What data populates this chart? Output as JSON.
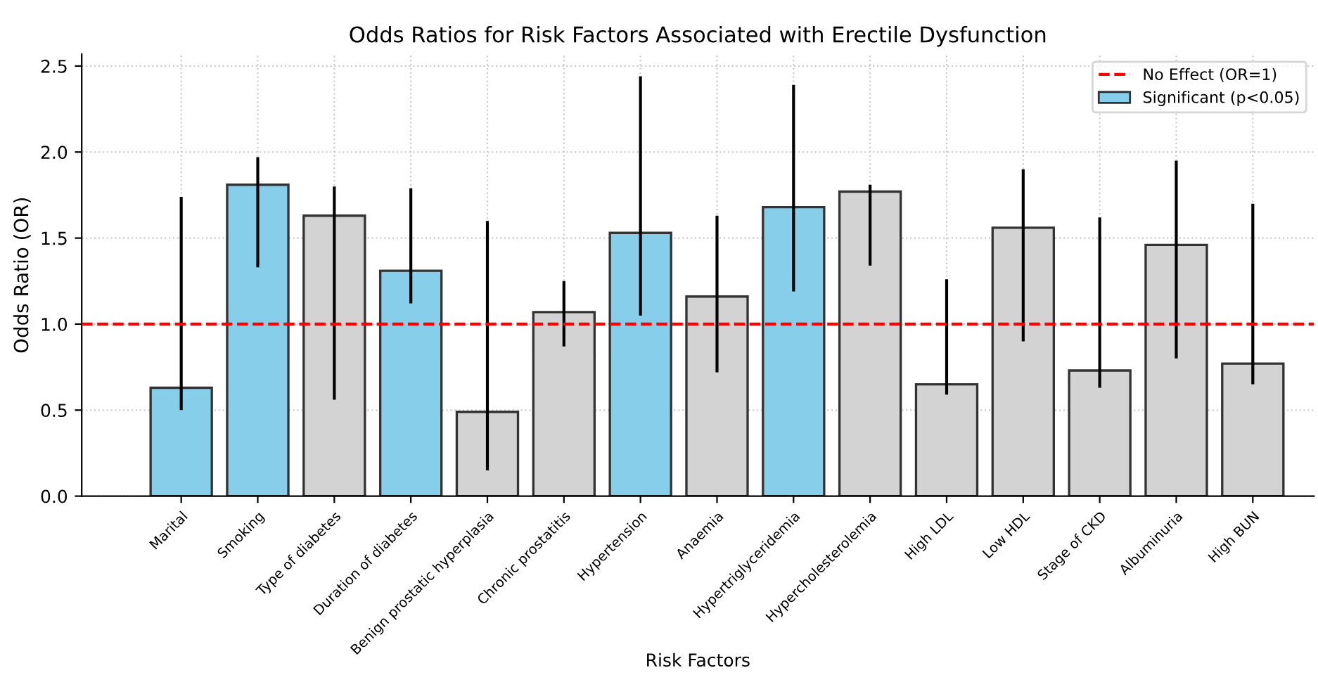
{
  "chart_data": {
    "type": "bar",
    "title": "Odds Ratios for Risk Factors Associated with Erectile Dysfunction",
    "xlabel": "Risk Factors",
    "ylabel": "Odds Ratio (OR)",
    "categories": [
      "Marital",
      "Smoking",
      "Type of diabetes",
      "Duration of diabetes",
      "Benign prostatic hyperplasia",
      "Chronic prostatitis",
      "Hypertension",
      "Anaemia",
      "Hypertriglyceridemia",
      "Hypercholesterolemia",
      "High LDL",
      "Low HDL",
      "Stage of CKD",
      "Albuminuria",
      "High BUN"
    ],
    "series": [
      {
        "name": "Significant (p<0.05)",
        "color": "#87ceeb",
        "colors": [
          "#87ceeb",
          "#87ceeb",
          "#d3d3d3",
          "#87ceeb",
          "#d3d3d3",
          "#d3d3d3",
          "#87ceeb",
          "#d3d3d3",
          "#87ceeb",
          "#d3d3d3",
          "#d3d3d3",
          "#d3d3d3",
          "#d3d3d3",
          "#d3d3d3",
          "#d3d3d3"
        ],
        "values": [
          0.63,
          1.81,
          1.63,
          1.31,
          0.49,
          1.07,
          1.53,
          1.16,
          1.68,
          1.77,
          0.65,
          1.56,
          0.73,
          1.46,
          0.77
        ],
        "errors": [
          [
            0.5,
            1.74
          ],
          [
            1.33,
            1.97
          ],
          [
            0.56,
            1.8
          ],
          [
            1.12,
            1.79
          ],
          [
            0.15,
            1.6
          ],
          [
            0.87,
            1.25
          ],
          [
            1.05,
            2.44
          ],
          [
            0.72,
            1.63
          ],
          [
            1.19,
            2.39
          ],
          [
            1.34,
            1.81
          ],
          [
            0.59,
            1.26
          ],
          [
            0.9,
            1.9
          ],
          [
            0.63,
            1.62
          ],
          [
            0.8,
            1.95
          ],
          [
            0.65,
            1.7
          ]
        ]
      }
    ],
    "ylim": [
      0,
      2.57
    ],
    "yticks": [
      {
        "value": 0,
        "label": "0.0"
      },
      0.5,
      {
        "value": 1,
        "label": "1.0"
      },
      1.5,
      {
        "value": 2,
        "label": "2.0"
      },
      2.5
    ],
    "ref_lines": [
      {
        "axis": "y",
        "value": 1,
        "label": "No Effect (OR=1)",
        "color": "#ff0000",
        "line_style": "dashed"
      }
    ],
    "grid": true,
    "legend": "top right"
  }
}
